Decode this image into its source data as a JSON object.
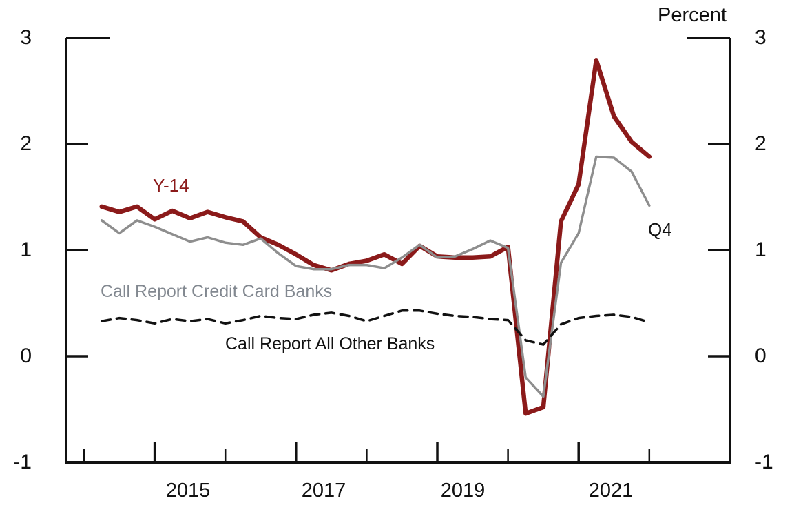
{
  "header": {
    "unit_label": "Percent"
  },
  "chart_data": {
    "type": "line",
    "title": "",
    "ylabel": "Percent",
    "xlabel": "",
    "grid": false,
    "legend_position": "inline-annotations",
    "x_quarters": [
      "2014 Q1",
      "2014 Q2",
      "2014 Q3",
      "2014 Q4",
      "2015 Q1",
      "2015 Q2",
      "2015 Q3",
      "2015 Q4",
      "2016 Q1",
      "2016 Q2",
      "2016 Q3",
      "2016 Q4",
      "2017 Q1",
      "2017 Q2",
      "2017 Q3",
      "2017 Q4",
      "2018 Q1",
      "2018 Q2",
      "2018 Q3",
      "2018 Q4",
      "2019 Q1",
      "2019 Q2",
      "2019 Q3",
      "2019 Q4",
      "2020 Q1",
      "2020 Q2",
      "2020 Q3",
      "2020 Q4",
      "2021 Q1",
      "2021 Q2",
      "2021 Q3",
      "2021 Q4"
    ],
    "x_axis": {
      "major_tick_years": [
        2015,
        2017,
        2019,
        2021
      ],
      "major_tick_labels": [
        "2015",
        "2017",
        "2019",
        "2021"
      ],
      "minor_tick_years": [
        2014,
        2016,
        2018,
        2020,
        2022
      ]
    },
    "y_axis": {
      "range": [
        -1,
        3
      ],
      "tick_values": [
        3,
        2,
        1,
        0,
        -1
      ],
      "tick_labels": [
        "3",
        "2",
        "1",
        "0",
        "-1"
      ],
      "inner_tick_values": [
        2,
        1,
        0
      ]
    },
    "series": [
      {
        "name": "Y-14",
        "color": "#8B1A1A",
        "style": "solid",
        "stroke_width": 6.5,
        "values": [
          1.41,
          1.36,
          1.41,
          1.29,
          1.37,
          1.3,
          1.36,
          1.31,
          1.27,
          1.12,
          1.05,
          0.96,
          0.86,
          0.81,
          0.87,
          0.9,
          0.96,
          0.87,
          1.04,
          0.94,
          0.93,
          0.93,
          0.94,
          1.03,
          -0.54,
          -0.48,
          1.27,
          1.62,
          2.79,
          2.26,
          2.02,
          1.88
        ]
      },
      {
        "name": "Call Report Credit Card Banks",
        "color": "#8E8E8E",
        "style": "solid",
        "stroke_width": 3.5,
        "values": [
          1.28,
          1.16,
          1.28,
          1.22,
          1.15,
          1.08,
          1.12,
          1.07,
          1.05,
          1.11,
          0.97,
          0.85,
          0.82,
          0.82,
          0.86,
          0.86,
          0.83,
          0.93,
          1.05,
          0.93,
          0.94,
          1.01,
          1.09,
          1.02,
          -0.2,
          -0.38,
          0.88,
          1.16,
          1.88,
          1.87,
          1.74,
          1.42
        ]
      },
      {
        "name": "Call Report All Other Banks",
        "color": "#111111",
        "style": "dashed",
        "stroke_width": 3.5,
        "values": [
          0.33,
          0.36,
          0.34,
          0.31,
          0.35,
          0.33,
          0.35,
          0.31,
          0.34,
          0.38,
          0.36,
          0.35,
          0.39,
          0.41,
          0.38,
          0.33,
          0.38,
          0.43,
          0.43,
          0.4,
          0.38,
          0.37,
          0.35,
          0.34,
          0.15,
          0.11,
          0.3,
          0.36,
          0.38,
          0.39,
          0.37,
          0.32
        ]
      }
    ],
    "annotations": {
      "y14_label": "Y-14",
      "credit_card_label": "Call Report Credit Card Banks",
      "all_other_label": "Call Report All Other Banks",
      "last_point_label": "Q4"
    }
  }
}
